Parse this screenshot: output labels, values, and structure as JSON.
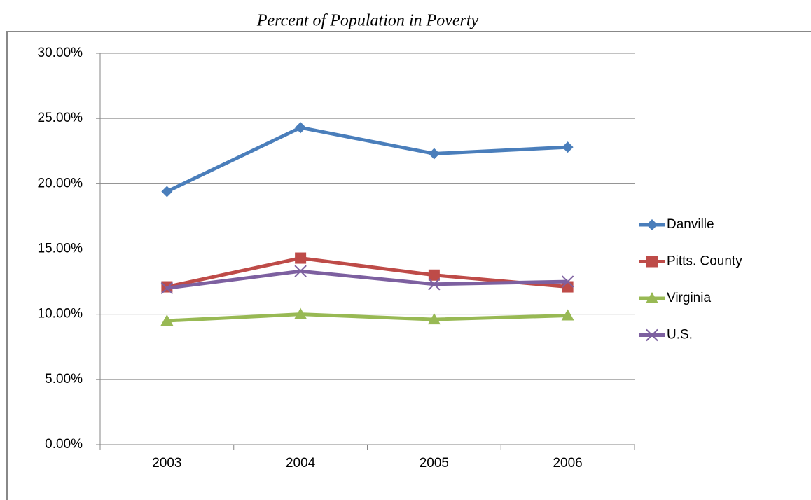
{
  "chart_data": {
    "type": "line",
    "title": "Percent of Population in Poverty",
    "categories": [
      "2003",
      "2004",
      "2005",
      "2006"
    ],
    "series": [
      {
        "name": "Danville",
        "color": "#4a7ebb",
        "marker": "diamond",
        "values": [
          19.4,
          24.3,
          22.3,
          22.8
        ]
      },
      {
        "name": "Pitts. County",
        "color": "#be4b48",
        "marker": "square",
        "values": [
          12.1,
          14.3,
          13.0,
          12.1
        ]
      },
      {
        "name": "Virginia",
        "color": "#98b954",
        "marker": "triangle",
        "values": [
          9.5,
          10.0,
          9.6,
          9.9
        ]
      },
      {
        "name": "U.S.",
        "color": "#7d60a0",
        "marker": "x",
        "values": [
          12.0,
          13.3,
          12.3,
          12.5
        ]
      }
    ],
    "ylim": [
      0,
      30
    ],
    "yticks": [
      {
        "value": 0,
        "label": "0.00%"
      },
      {
        "value": 5,
        "label": "5.00%"
      },
      {
        "value": 10,
        "label": "10.00%"
      },
      {
        "value": 15,
        "label": "15.00%"
      },
      {
        "value": 20,
        "label": "20.00%"
      },
      {
        "value": 25,
        "label": "25.00%"
      },
      {
        "value": 30,
        "label": "30.00%"
      }
    ],
    "grid": true,
    "legend": "right"
  }
}
